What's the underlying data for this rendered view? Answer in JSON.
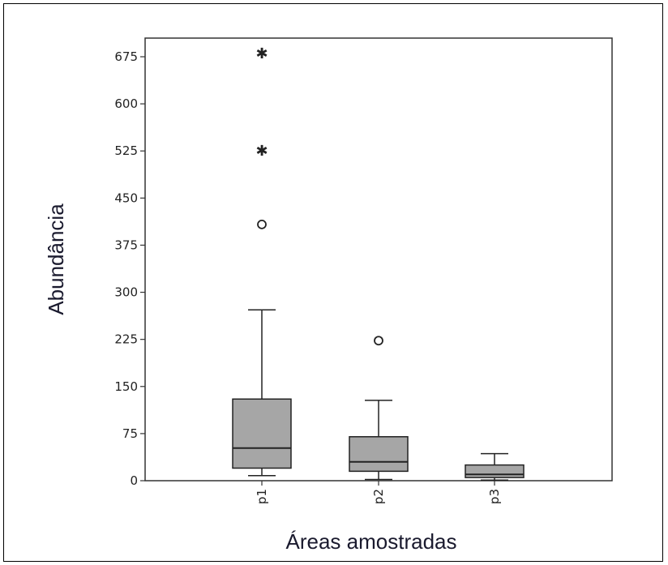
{
  "chart_data": {
    "type": "boxplot",
    "title": "",
    "xlabel": "Áreas amostradas",
    "ylabel": "Abundância",
    "ylim": [
      0,
      700
    ],
    "yticks": [
      0,
      75,
      150,
      225,
      300,
      375,
      450,
      525,
      600,
      675
    ],
    "categories": [
      "p1",
      "p2",
      "p3"
    ],
    "boxes": [
      {
        "category": "p1",
        "whisker_low": 8,
        "q1": 20,
        "median": 52,
        "q3": 130,
        "whisker_high": 272,
        "outliers": [
          {
            "value": 408,
            "kind": "circle"
          }
        ],
        "extremes": [
          {
            "value": 525,
            "kind": "star"
          },
          {
            "value": 680,
            "kind": "star"
          }
        ]
      },
      {
        "category": "p2",
        "whisker_low": 2,
        "q1": 15,
        "median": 30,
        "q3": 70,
        "whisker_high": 128,
        "outliers": [
          {
            "value": 223,
            "kind": "circle"
          }
        ],
        "extremes": []
      },
      {
        "category": "p3",
        "whisker_low": 1,
        "q1": 5,
        "median": 10,
        "q3": 25,
        "whisker_high": 43,
        "outliers": [],
        "extremes": []
      }
    ],
    "grid": false,
    "colors": {
      "box_fill": "#a6a6a6",
      "stroke": "#222222"
    }
  }
}
